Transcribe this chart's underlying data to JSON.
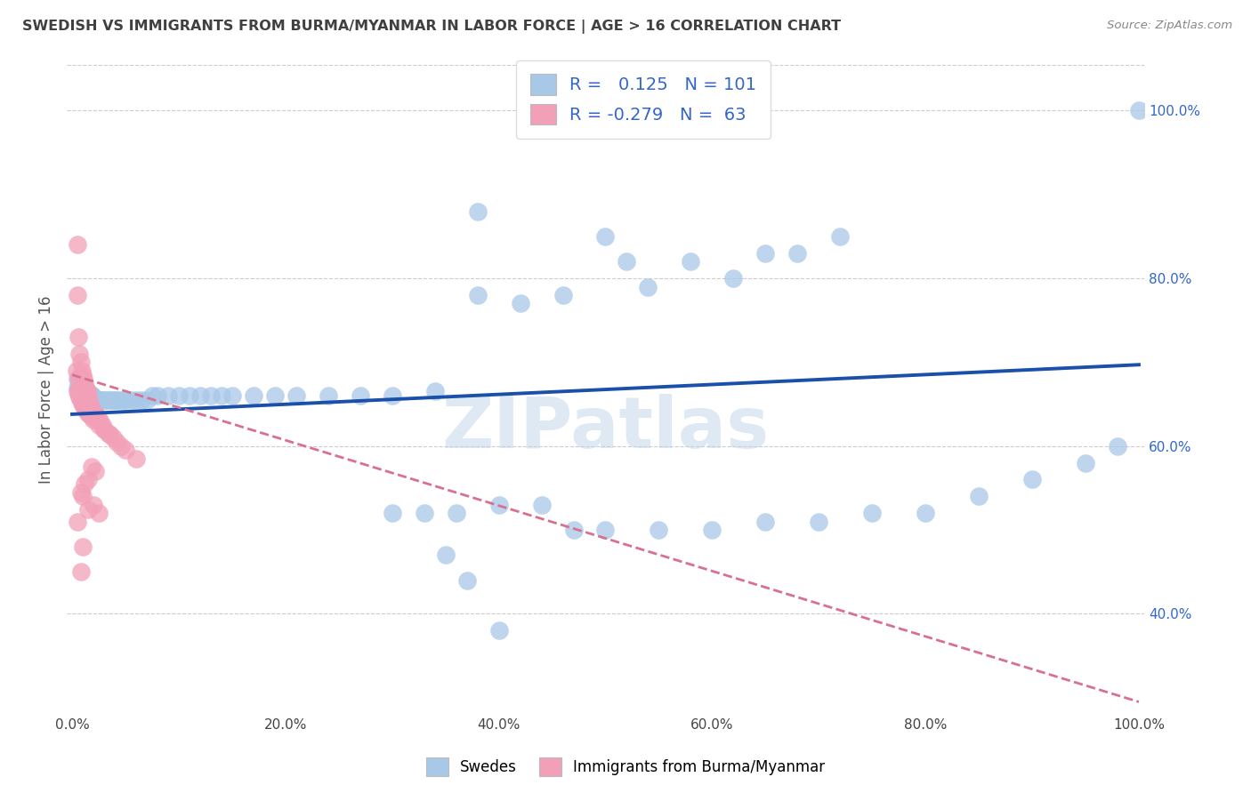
{
  "title": "SWEDISH VS IMMIGRANTS FROM BURMA/MYANMAR IN LABOR FORCE | AGE > 16 CORRELATION CHART",
  "source": "Source: ZipAtlas.com",
  "ylabel": "In Labor Force | Age > 16",
  "xlim": [
    -0.005,
    1.005
  ],
  "ylim": [
    0.28,
    1.055
  ],
  "xticks": [
    0.0,
    0.2,
    0.4,
    0.6,
    0.8,
    1.0
  ],
  "xtick_labels": [
    "0.0%",
    "20.0%",
    "40.0%",
    "60.0%",
    "80.0%",
    "100.0%"
  ],
  "yticks_right": [
    0.4,
    0.6,
    0.8,
    1.0
  ],
  "ytick_labels_right": [
    "40.0%",
    "60.0%",
    "80.0%",
    "100.0%"
  ],
  "legend_blue_R": "0.125",
  "legend_blue_N": "101",
  "legend_pink_R": "-0.279",
  "legend_pink_N": "63",
  "blue_color": "#a8c8e8",
  "pink_color": "#f2a0b8",
  "blue_line_color": "#1a4faa",
  "pink_line_color": "#d87090",
  "watermark": "ZIPatlas",
  "background_color": "#ffffff",
  "grid_color": "#cccccc",
  "title_color": "#404040",
  "axis_label_color": "#555555",
  "tick_color_right": "#3366cc",
  "tick_color_bottom": "#444444",
  "blue_x": [
    0.005,
    0.005,
    0.007,
    0.007,
    0.008,
    0.008,
    0.009,
    0.009,
    0.01,
    0.01,
    0.01,
    0.011,
    0.011,
    0.012,
    0.012,
    0.013,
    0.013,
    0.014,
    0.015,
    0.015,
    0.016,
    0.016,
    0.017,
    0.017,
    0.018,
    0.018,
    0.019,
    0.019,
    0.02,
    0.02,
    0.021,
    0.022,
    0.023,
    0.024,
    0.025,
    0.026,
    0.027,
    0.028,
    0.03,
    0.032,
    0.034,
    0.036,
    0.038,
    0.04,
    0.042,
    0.045,
    0.048,
    0.05,
    0.055,
    0.06,
    0.065,
    0.07,
    0.075,
    0.08,
    0.09,
    0.1,
    0.11,
    0.12,
    0.13,
    0.14,
    0.15,
    0.17,
    0.19,
    0.21,
    0.24,
    0.27,
    0.3,
    0.34,
    0.38,
    0.38,
    0.42,
    0.46,
    0.5,
    0.52,
    0.54,
    0.58,
    0.62,
    0.65,
    0.68,
    0.72,
    0.3,
    0.33,
    0.36,
    0.4,
    0.44,
    0.47,
    0.5,
    0.55,
    0.6,
    0.65,
    0.7,
    0.75,
    0.8,
    0.85,
    0.9,
    0.95,
    0.98,
    1.0,
    0.35,
    0.37,
    0.4
  ],
  "blue_y": [
    0.68,
    0.67,
    0.675,
    0.668,
    0.672,
    0.665,
    0.67,
    0.665,
    0.668,
    0.665,
    0.662,
    0.668,
    0.663,
    0.668,
    0.663,
    0.665,
    0.66,
    0.665,
    0.663,
    0.66,
    0.663,
    0.66,
    0.662,
    0.658,
    0.66,
    0.657,
    0.66,
    0.655,
    0.658,
    0.655,
    0.655,
    0.655,
    0.655,
    0.655,
    0.655,
    0.655,
    0.655,
    0.655,
    0.655,
    0.655,
    0.655,
    0.655,
    0.655,
    0.655,
    0.655,
    0.655,
    0.655,
    0.655,
    0.655,
    0.655,
    0.655,
    0.655,
    0.66,
    0.66,
    0.66,
    0.66,
    0.66,
    0.66,
    0.66,
    0.66,
    0.66,
    0.66,
    0.66,
    0.66,
    0.66,
    0.66,
    0.66,
    0.665,
    0.88,
    0.78,
    0.77,
    0.78,
    0.85,
    0.82,
    0.79,
    0.82,
    0.8,
    0.83,
    0.83,
    0.85,
    0.52,
    0.52,
    0.52,
    0.53,
    0.53,
    0.5,
    0.5,
    0.5,
    0.5,
    0.51,
    0.51,
    0.52,
    0.52,
    0.54,
    0.56,
    0.58,
    0.6,
    1.0,
    0.47,
    0.44,
    0.38
  ],
  "pink_x": [
    0.004,
    0.005,
    0.005,
    0.006,
    0.006,
    0.007,
    0.007,
    0.008,
    0.008,
    0.009,
    0.009,
    0.01,
    0.01,
    0.011,
    0.011,
    0.012,
    0.012,
    0.013,
    0.013,
    0.014,
    0.015,
    0.015,
    0.016,
    0.017,
    0.018,
    0.02,
    0.022,
    0.024,
    0.026,
    0.028,
    0.03,
    0.034,
    0.038,
    0.042,
    0.046,
    0.05,
    0.06,
    0.005,
    0.006,
    0.007,
    0.008,
    0.009,
    0.01,
    0.012,
    0.014,
    0.016,
    0.018,
    0.02,
    0.025,
    0.03,
    0.035,
    0.018,
    0.022,
    0.015,
    0.012,
    0.008,
    0.01,
    0.02,
    0.015,
    0.025,
    0.01,
    0.005,
    0.008
  ],
  "pink_y": [
    0.69,
    0.78,
    0.84,
    0.73,
    0.68,
    0.71,
    0.67,
    0.7,
    0.665,
    0.69,
    0.66,
    0.685,
    0.655,
    0.68,
    0.65,
    0.675,
    0.648,
    0.668,
    0.645,
    0.665,
    0.66,
    0.642,
    0.655,
    0.65,
    0.645,
    0.64,
    0.638,
    0.635,
    0.63,
    0.625,
    0.62,
    0.615,
    0.61,
    0.605,
    0.6,
    0.595,
    0.585,
    0.665,
    0.662,
    0.658,
    0.655,
    0.652,
    0.65,
    0.645,
    0.64,
    0.638,
    0.635,
    0.632,
    0.625,
    0.62,
    0.615,
    0.575,
    0.57,
    0.56,
    0.555,
    0.545,
    0.54,
    0.53,
    0.525,
    0.52,
    0.48,
    0.51,
    0.45
  ],
  "blue_trend_x": [
    0.0,
    1.0
  ],
  "blue_trend_y": [
    0.638,
    0.697
  ],
  "pink_trend_x": [
    0.0,
    1.0
  ],
  "pink_trend_y": [
    0.685,
    0.295
  ]
}
